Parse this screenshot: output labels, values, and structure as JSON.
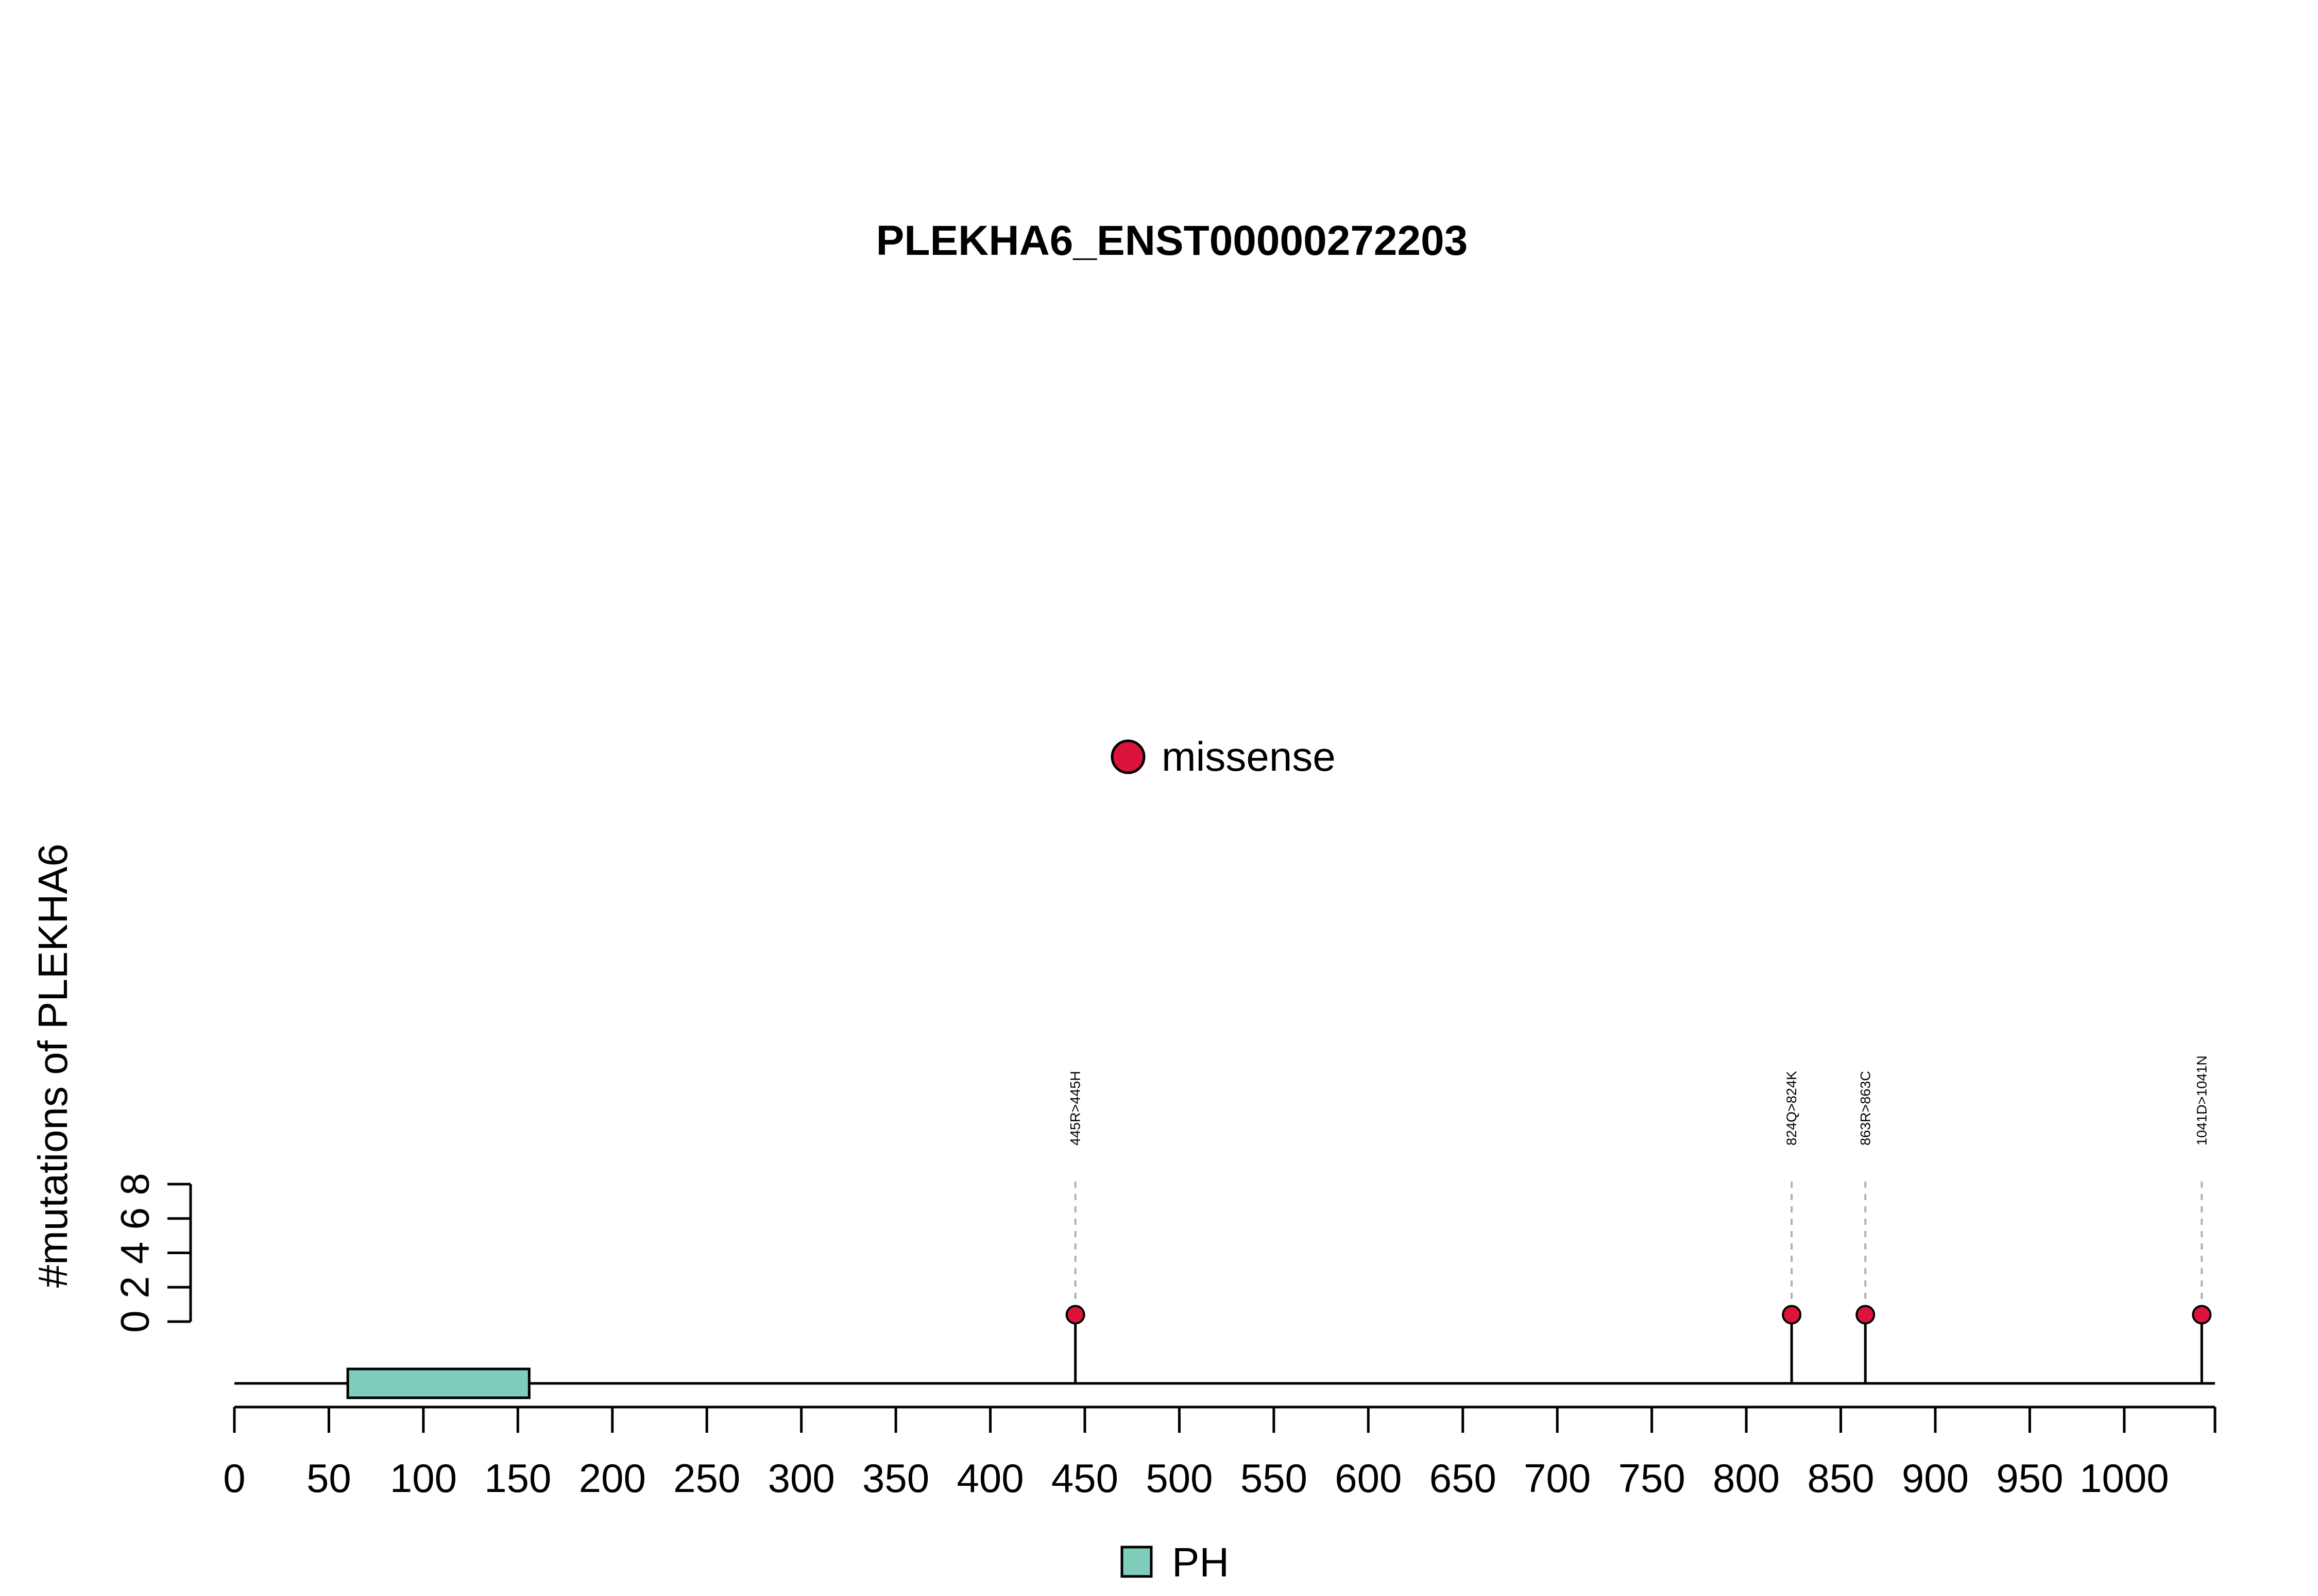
{
  "chart_data": {
    "type": "lollipop",
    "title": "PLEKHA6_ENST00000272203",
    "ylabel": "#mutations of PLEKHA6",
    "xlabel": "",
    "protein_length": 1048,
    "x_ticks": [
      0,
      50,
      100,
      150,
      200,
      250,
      300,
      350,
      400,
      450,
      500,
      550,
      600,
      650,
      700,
      750,
      800,
      850,
      900,
      950,
      1000
    ],
    "x_range": [
      0,
      1048
    ],
    "y_ticks": [
      0,
      2,
      4,
      6,
      8
    ],
    "y_range": [
      0,
      8
    ],
    "series": [
      {
        "name": "missense",
        "color": "#DC143C",
        "points": [
          {
            "position": 445,
            "count": 1,
            "label": "445R>445H"
          },
          {
            "position": 824,
            "count": 1,
            "label": "824Q>824K"
          },
          {
            "position": 863,
            "count": 1,
            "label": "863R>863C"
          },
          {
            "position": 1041,
            "count": 1,
            "label": "1041D>1041N"
          }
        ]
      }
    ],
    "domains": [
      {
        "name": "PH",
        "start": 60,
        "end": 156,
        "color": "#7FCDBB"
      }
    ],
    "legend": {
      "mutation_types": [
        {
          "label": "missense",
          "color": "#DC143C"
        }
      ],
      "domains": [
        {
          "label": "PH",
          "color": "#7FCDBB"
        }
      ]
    }
  }
}
